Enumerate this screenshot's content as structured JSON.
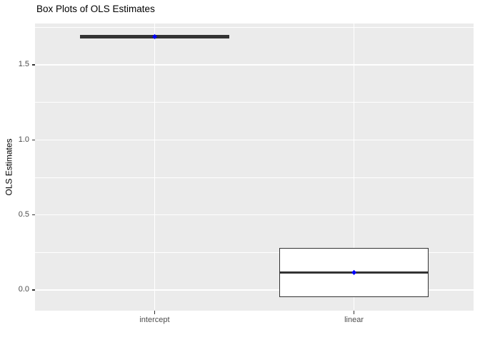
{
  "chart_data": {
    "type": "boxplot",
    "title": "Box Plots of OLS Estimates",
    "ylabel": "OLS Estimates",
    "xlabel": "",
    "categories": [
      "intercept",
      "linear"
    ],
    "y_ticks": [
      {
        "label": "0.0",
        "value": 0.0
      },
      {
        "label": "0.5",
        "value": 0.5
      },
      {
        "label": "1.0",
        "value": 1.0
      },
      {
        "label": "1.5",
        "value": 1.5
      }
    ],
    "y_minor_ticks": [
      0.25,
      0.75,
      1.25,
      1.75
    ],
    "ylim": [
      -0.138,
      1.775
    ],
    "x_domain": [
      0.4,
      2.6
    ],
    "box_width": 0.75,
    "grid": "on",
    "legend": "none",
    "boxes": [
      {
        "category": "intercept",
        "q1": 1.687,
        "median": 1.687,
        "q3": 1.687,
        "whisker_low": 1.687,
        "whisker_high": 1.687,
        "mean": 1.687
      },
      {
        "category": "linear",
        "q1": -0.05,
        "median": 0.116,
        "q3": 0.282,
        "whisker_low": -0.05,
        "whisker_high": 0.282,
        "mean": 0.116
      }
    ],
    "colors": {
      "panel_background": "#EBEBEB",
      "gridline": "#FFFFFF",
      "box_border": "#333333",
      "box_fill": "#FFFFFF",
      "median": "#333333",
      "mean_point": "#0000FF",
      "axis_text": "#4D4D4D",
      "title_text": "#000000",
      "tick_mark": "#333333"
    }
  }
}
